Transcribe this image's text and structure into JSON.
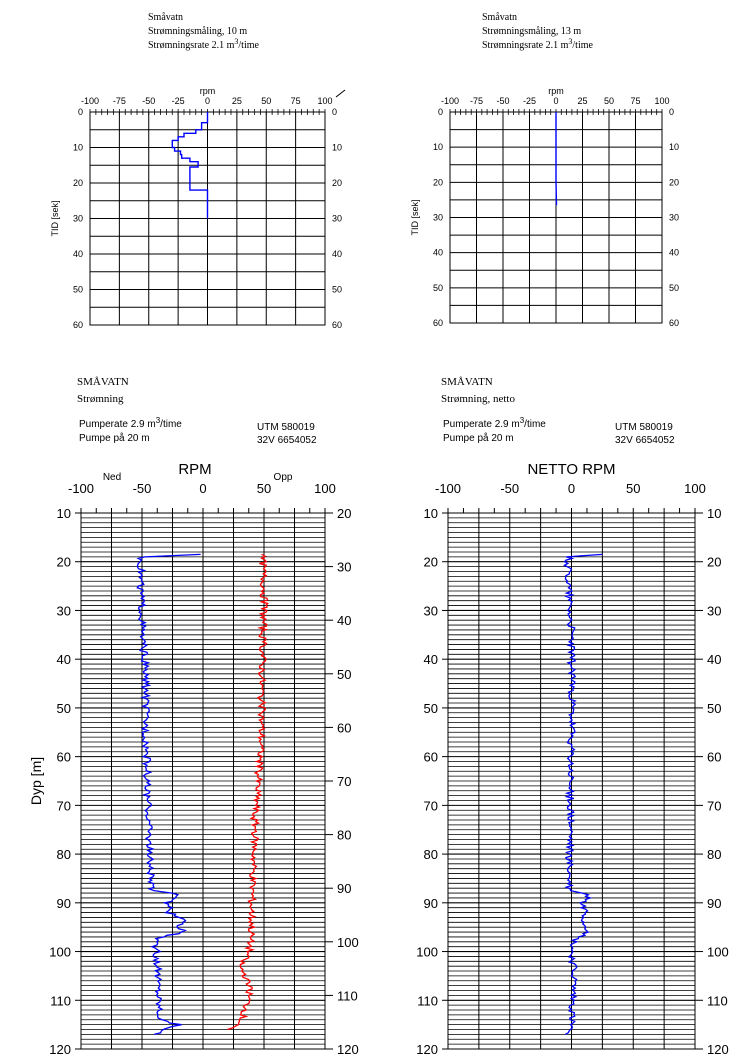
{
  "chart_data": [
    {
      "type": "line",
      "header": [
        "Småvatn",
        "Strømningsmåling,    10 m",
        "Strømningsrate  2.1 m³/time"
      ],
      "xlabel": "rpm",
      "ylabel": "TID [sek]",
      "xlim": [
        -100,
        100
      ],
      "ylim": [
        0,
        60
      ],
      "xticks": [
        "-100",
        "-75",
        "-50",
        "-25",
        "0",
        "25",
        "50",
        "75",
        "100"
      ],
      "yticks": [
        "0",
        "10",
        "20",
        "30",
        "40",
        "50",
        "60"
      ],
      "color": "#0000ff",
      "series": [
        {
          "x": [
            0,
            0,
            -5,
            -5,
            -10,
            -10,
            -20,
            -20,
            -25,
            -25,
            -30,
            -30,
            -28,
            -28,
            -23,
            -23,
            -22,
            -22,
            -15,
            -15,
            -8,
            -8,
            -15,
            -15,
            -15,
            -15,
            0,
            0
          ],
          "y": [
            0,
            3,
            3,
            5,
            5,
            6,
            6,
            7,
            7,
            8,
            8,
            10,
            10,
            11,
            11,
            12,
            12,
            13,
            13,
            14,
            14,
            15.5,
            15.5,
            19,
            19,
            22,
            22,
            30
          ]
        }
      ]
    },
    {
      "type": "line",
      "header": [
        "Småvatn",
        "Strømningsmåling,    13 m",
        "Strømningsrate  2.1 m³/time"
      ],
      "xlabel": "rpm",
      "ylabel": "TID [sek]",
      "xlim": [
        -100,
        100
      ],
      "ylim": [
        0,
        60
      ],
      "xticks": [
        "-100",
        "-75",
        "-50",
        "-25",
        "0",
        "25",
        "50",
        "75",
        "100"
      ],
      "yticks": [
        "0",
        "10",
        "20",
        "30",
        "40",
        "50",
        "60"
      ],
      "color": "#0000ff",
      "series": [
        {
          "x": [
            0,
            0,
            0.5
          ],
          "y": [
            0,
            20,
            26.5
          ]
        }
      ]
    },
    {
      "type": "line",
      "header": [
        "SMÅVATN",
        "Strømning"
      ],
      "info": [
        "Pumperate 2.9 m³/time",
        "Pumpe på 20 m"
      ],
      "utm": [
        "UTM    580019",
        "32V   6654052"
      ],
      "title": "RPM",
      "left_label": "Ned",
      "right_label": "Opp",
      "ylabel": "Dyp [m]",
      "xlim": [
        -100,
        100
      ],
      "ylim": [
        10,
        120
      ],
      "right_ylim": [
        20,
        120
      ],
      "xticks": [
        "-100",
        "-50",
        "0",
        "50",
        "100"
      ],
      "yticks": [
        "10",
        "20",
        "30",
        "40",
        "50",
        "60",
        "70",
        "80",
        "90",
        "100",
        "110",
        "120"
      ],
      "right_yticks": [
        "20",
        "30",
        "40",
        "50",
        "60",
        "70",
        "80",
        "90",
        "100",
        "110",
        "120"
      ],
      "series": [
        {
          "name": "Ned",
          "color": "#0000ff",
          "depth": [
            18.5,
            19,
            20,
            25,
            30,
            35,
            40,
            45,
            50,
            55,
            60,
            65,
            70,
            75,
            80,
            85,
            87.5,
            88,
            89,
            90,
            91,
            92,
            93,
            94,
            95,
            96,
            97,
            98,
            100,
            105,
            110,
            114,
            115,
            116,
            117
          ],
          "rpm": [
            -2,
            -50,
            -51,
            -51,
            -50,
            -50,
            -48,
            -47,
            -47,
            -47,
            -46,
            -46,
            -45,
            -44,
            -44,
            -43,
            -43,
            -25,
            -20,
            -30,
            -25,
            -28,
            -20,
            -15,
            -22,
            -15,
            -35,
            -40,
            -38,
            -37,
            -36,
            -35,
            -20,
            -30,
            -40
          ]
        },
        {
          "name": "Opp",
          "color": "#ff0000",
          "depth": [
            18.5,
            20,
            25,
            30,
            35,
            40,
            45,
            50,
            55,
            60,
            62,
            65,
            70,
            72,
            75,
            80,
            85,
            90,
            95,
            100,
            103,
            105,
            108,
            110,
            112,
            115,
            116
          ],
          "rpm": [
            48,
            49,
            50,
            50,
            49,
            49,
            48,
            48,
            48,
            47,
            46,
            45,
            44,
            42,
            43,
            42,
            41,
            40,
            40,
            38,
            30,
            35,
            38,
            37,
            35,
            30,
            20
          ]
        }
      ]
    },
    {
      "type": "line",
      "header": [
        "SMÅVATN",
        "Strømning, netto"
      ],
      "info": [
        "Pumperate 2.9 m³/time",
        "Pumpe på 20 m"
      ],
      "utm": [
        "UTM    580019",
        "32V   6654052"
      ],
      "title": "NETTO  RPM",
      "xlim": [
        -100,
        100
      ],
      "ylim": [
        10,
        120
      ],
      "xticks": [
        "-100",
        "-50",
        "0",
        "50",
        "100"
      ],
      "yticks": [
        "10",
        "20",
        "30",
        "40",
        "50",
        "60",
        "70",
        "80",
        "90",
        "100",
        "110",
        "120"
      ],
      "series": [
        {
          "color": "#0000ff",
          "depth": [
            18.5,
            19,
            20,
            25,
            30,
            35,
            40,
            45,
            50,
            55,
            60,
            65,
            70,
            75,
            80,
            85,
            87.5,
            88,
            89,
            90,
            92,
            94,
            96,
            97,
            98,
            100,
            105,
            110,
            114,
            116,
            117
          ],
          "rpm": [
            25,
            -2,
            -3,
            -2,
            -1,
            0,
            0,
            1,
            0,
            0,
            -1,
            -1,
            -1,
            -1,
            -2,
            -2,
            -2,
            10,
            15,
            8,
            12,
            10,
            15,
            5,
            2,
            0,
            2,
            1,
            0,
            -1,
            -5
          ]
        }
      ]
    }
  ]
}
